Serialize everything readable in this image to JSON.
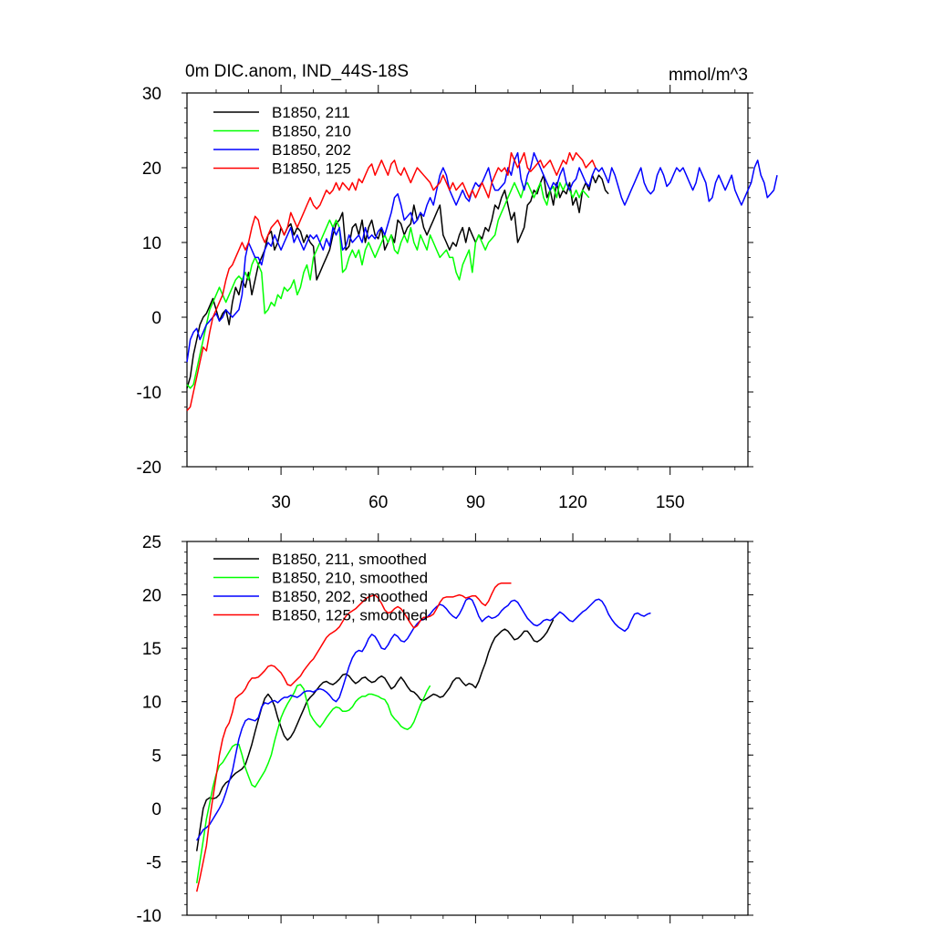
{
  "chart_data": [
    {
      "type": "line",
      "title": "0m DIC.anom, IND_44S-18S",
      "units": "mmol/m^3",
      "xlim": [
        1,
        174
      ],
      "ylim": [
        -20,
        30
      ],
      "xticks": [
        30,
        60,
        90,
        120,
        150
      ],
      "xtick_labels": [
        "30",
        "60",
        "90",
        "120",
        "150"
      ],
      "yticks": [
        -20,
        -10,
        0,
        10,
        20,
        30
      ],
      "ytick_labels": [
        "-20",
        "-10",
        "0",
        "10",
        "20",
        "30"
      ],
      "legend_position": "top-left",
      "series": [
        {
          "name": "B1850, 211",
          "color": "#000000",
          "x0": 1,
          "values": [
            -9.5,
            -8,
            -5,
            -3,
            -1,
            0,
            0.5,
            1.5,
            2.5,
            1,
            -0.5,
            0.5,
            1,
            -1,
            2,
            4,
            3,
            5,
            4,
            6,
            3,
            5,
            7,
            8,
            9,
            11,
            11.5,
            9,
            10,
            12,
            11,
            12,
            12.5,
            11,
            12,
            11.5,
            10,
            11,
            10,
            9.5,
            5,
            6,
            7,
            8,
            9,
            11,
            12.5,
            13,
            14,
            9,
            9.5,
            12,
            12.5,
            11,
            13,
            10,
            12,
            13,
            11,
            10.5,
            12,
            9,
            10,
            11,
            10,
            13,
            12.5,
            11,
            12,
            12.5,
            15,
            13,
            14,
            12,
            11,
            12,
            13,
            14,
            15,
            11,
            10,
            9,
            10,
            9.5,
            11,
            12,
            10,
            12,
            11,
            10,
            11,
            10.5,
            12,
            11.5,
            13,
            15,
            14.5,
            16,
            17,
            15,
            13,
            14,
            10,
            11,
            12,
            15,
            15.5,
            17,
            16.5,
            18,
            19,
            16,
            17,
            15,
            18,
            16,
            17,
            16.5,
            18,
            15,
            16,
            14,
            17,
            18,
            17,
            19,
            18,
            19,
            18.5,
            17,
            16.5
          ]
        },
        {
          "name": "B1850, 210",
          "color": "#00ff00",
          "x0": 1,
          "values": [
            -9,
            -9.5,
            -9,
            -7,
            -5,
            -3,
            -1,
            1,
            2,
            3,
            4,
            3,
            2,
            3,
            4,
            5,
            5.5,
            5,
            6,
            5,
            7,
            8,
            7,
            6,
            0.5,
            1,
            2,
            1.5,
            3,
            2.5,
            4,
            3.5,
            4,
            5,
            3,
            4,
            6,
            7,
            5,
            8,
            9,
            10,
            11,
            12,
            13,
            12,
            13,
            12,
            6,
            6.5,
            8,
            9,
            8,
            9,
            7,
            9,
            10,
            9,
            8,
            9,
            10,
            11,
            10,
            11,
            9,
            8.5,
            10,
            11,
            10,
            12,
            10,
            9,
            11,
            10,
            9,
            11,
            10,
            9,
            8,
            8.5,
            9,
            8,
            8,
            6,
            5,
            7,
            8,
            9,
            6,
            10,
            11,
            10,
            9,
            10,
            10.5,
            11,
            13,
            14,
            15,
            16,
            17,
            18,
            17,
            16,
            17.5,
            18,
            17,
            16,
            17,
            18,
            16,
            15,
            17,
            17.5,
            16,
            18,
            17,
            18,
            17,
            16,
            17,
            16,
            17,
            16.5,
            16
          ]
        },
        {
          "name": "B1850, 202",
          "color": "#0000ff",
          "x0": 1,
          "values": [
            -6,
            -3,
            -2,
            -1.5,
            -3,
            -2,
            -1,
            -0.5,
            0,
            0.5,
            -0.5,
            0,
            1,
            0.5,
            0,
            0.5,
            1,
            3,
            8,
            10,
            9,
            8,
            8,
            7,
            9,
            10,
            9.5,
            11,
            10,
            9,
            10,
            11,
            12,
            10,
            11,
            10,
            9,
            10,
            11,
            10.5,
            11,
            10,
            9,
            10.5,
            9.5,
            12,
            11,
            12,
            9,
            9.5,
            11,
            10,
            10.5,
            11,
            10,
            12,
            10.5,
            11,
            10.5,
            11.5,
            12,
            11,
            12.5,
            14,
            16,
            16.5,
            15,
            13,
            13.5,
            14,
            12.5,
            13,
            14,
            13.5,
            15,
            16,
            15,
            17,
            19,
            20,
            19,
            17,
            16,
            15,
            16,
            17,
            16,
            15.5,
            17,
            18,
            17.5,
            18,
            19,
            20,
            18,
            17,
            17,
            17.5,
            18,
            20,
            19,
            21,
            22,
            18.5,
            17,
            19,
            20,
            22,
            21,
            20,
            19,
            18,
            17,
            18,
            17.5,
            19,
            20,
            18,
            17,
            18,
            18.5,
            20,
            19,
            18,
            17.5,
            19,
            20,
            19.5,
            20,
            19,
            18,
            20,
            19,
            17.5,
            16,
            15,
            16,
            17,
            18,
            19,
            20,
            18,
            17,
            16.5,
            17,
            19,
            20,
            19,
            17.5,
            18,
            19,
            20,
            19.5,
            20,
            19,
            18,
            17,
            18,
            20,
            19,
            18,
            15.5,
            16,
            18,
            19,
            18,
            17,
            18,
            19,
            17,
            16,
            15,
            16,
            17,
            18,
            20,
            21,
            19,
            18,
            16,
            16.5,
            17,
            19
          ]
        },
        {
          "name": "B1850, 125",
          "color": "#ff0000",
          "x0": 1,
          "values": [
            -12.5,
            -12,
            -10,
            -8,
            -6,
            -4,
            -4.5,
            -2,
            0,
            1,
            2,
            3,
            5,
            6.5,
            7,
            8,
            9,
            10,
            9,
            10,
            12,
            13.5,
            13,
            11,
            10,
            11,
            12,
            12.5,
            13,
            12,
            11,
            12,
            14,
            13,
            12,
            13,
            14,
            15,
            16,
            15,
            14.5,
            15,
            16,
            17,
            16.5,
            17,
            18,
            17,
            18,
            17.5,
            17,
            18,
            17,
            18.5,
            18,
            19,
            20,
            20.5,
            19,
            20,
            21,
            20,
            19,
            20.5,
            21,
            19.5,
            19,
            20,
            19,
            18,
            19,
            20,
            19.5,
            19,
            18.5,
            18,
            17,
            17.5,
            18,
            19,
            18,
            17,
            18,
            17,
            17.5,
            18,
            17,
            16,
            17,
            16,
            17,
            18,
            17,
            16,
            18,
            19,
            20,
            19.5,
            20,
            19,
            22,
            21,
            20,
            21,
            22,
            20,
            19.5,
            20,
            20.5,
            21,
            20,
            20.5,
            21,
            20,
            19,
            20,
            21,
            20.5,
            22,
            21,
            22,
            21.5,
            21,
            20,
            20.5,
            21,
            20
          ]
        }
      ]
    },
    {
      "type": "line",
      "title": "",
      "units": "",
      "xlim": [
        1,
        174
      ],
      "ylim": [
        -10,
        25
      ],
      "xticks": [
        30,
        60,
        90,
        120,
        150
      ],
      "xtick_labels": [
        "",
        "",
        "",
        "",
        ""
      ],
      "yticks": [
        -10,
        -5,
        0,
        5,
        10,
        15,
        20,
        25
      ],
      "ytick_labels": [
        "-10",
        "-5",
        "0",
        "5",
        "10",
        "15",
        "20",
        "25"
      ],
      "legend_position": "top-left",
      "series": [
        {
          "name": "B1850, 211, smoothed",
          "color": "#000000",
          "x0": 4,
          "values": [
            -4,
            -2,
            0,
            0.8,
            1,
            0.9,
            1,
            1.3,
            2,
            2.4,
            2.6,
            3,
            3.3,
            3.5,
            3.7,
            4.1,
            5,
            6,
            7.2,
            8.3,
            9.4,
            10.3,
            10.7,
            10.3,
            9.6,
            8.5,
            7.6,
            6.8,
            6.4,
            6.7,
            7.2,
            7.9,
            8.6,
            9.3,
            10,
            10.4,
            10.7,
            11.1,
            11.5,
            11.8,
            11.9,
            11.7,
            11.6,
            11.8,
            12.1,
            12.5,
            12.6,
            12.4,
            12,
            11.7,
            11.9,
            12.2,
            12.3,
            12,
            11.8,
            11.9,
            12.2,
            12.4,
            12.2,
            11.7,
            11.2,
            11.4,
            11.9,
            12.3,
            11.9,
            11.4,
            11,
            10.9,
            10.6,
            10.2,
            10.1,
            10.3,
            10.5,
            10.7,
            10.6,
            10.4,
            10.5,
            10.9,
            11.3,
            11.9,
            12.2,
            12.2,
            11.8,
            11.5,
            11.7,
            11.6,
            11.3,
            11.9,
            12.8,
            13.6,
            14.6,
            15.4,
            16,
            16.3,
            16.6,
            16.8,
            16.6,
            16.2,
            15.8,
            15.9,
            16.2,
            16.6,
            16.6,
            16.2,
            15.7,
            15.6,
            15.8,
            16.1,
            16.5,
            17.1,
            17.7
          ]
        },
        {
          "name": "B1850, 210, smoothed",
          "color": "#00ff00",
          "x0": 4,
          "values": [
            -7,
            -5,
            -3,
            -1,
            0.5,
            2,
            3.2,
            4,
            4.3,
            4.8,
            5.3,
            5.8,
            6,
            6,
            5,
            3.8,
            3,
            2.2,
            2,
            2.5,
            3,
            3.5,
            4.2,
            5,
            6.3,
            7.4,
            8.5,
            9.2,
            9.8,
            10.3,
            10.8,
            11.5,
            11.6,
            11.2,
            10,
            8.8,
            8.3,
            7.9,
            7.6,
            8,
            8.5,
            8.9,
            9.3,
            9.5,
            9.4,
            9.1,
            9.1,
            9.2,
            9.5,
            10,
            10.3,
            10.5,
            10.5,
            10.7,
            10.7,
            10.6,
            10.5,
            10.3,
            10.2,
            9.7,
            8.8,
            8.4,
            8.1,
            7.7,
            7.5,
            7.4,
            7.6,
            8.1,
            8.9,
            9.7,
            10.3,
            11,
            11.5
          ]
        },
        {
          "name": "B1850, 202, smoothed",
          "color": "#0000ff",
          "x0": 4,
          "values": [
            -3,
            -2.5,
            -2,
            -1.8,
            -1.5,
            -1,
            -0.5,
            0,
            0.6,
            1.5,
            2.5,
            3.5,
            5,
            6.5,
            7.5,
            8.2,
            8.4,
            8.3,
            8.2,
            8.5,
            9.5,
            9.9,
            9.8,
            10,
            10.1,
            9.9,
            10.2,
            10.4,
            10.4,
            10.6,
            10.5,
            10.4,
            10.6,
            10.9,
            11,
            11,
            10.9,
            11.1,
            11.2,
            11.1,
            10.9,
            10.6,
            10.2,
            10,
            10.4,
            11.3,
            12.3,
            13.3,
            14.1,
            14.6,
            14.8,
            14.7,
            15.2,
            15.9,
            16.3,
            16.1,
            15.6,
            15,
            14.9,
            15.3,
            15.9,
            16.3,
            16.1,
            15.7,
            15.6,
            15.9,
            16.4,
            16.9,
            17.3,
            17.6,
            17.7,
            17.9,
            18.2,
            18.6,
            18.9,
            19.1,
            19,
            18.7,
            18.3,
            18,
            17.8,
            18.2,
            18.8,
            19.5,
            19.7,
            19.5,
            18.8,
            18,
            17.5,
            17.8,
            18,
            17.8,
            17.9,
            18.1,
            18.5,
            18.8,
            19,
            19.4,
            19.5,
            19.3,
            18.8,
            18.3,
            17.8,
            17.5,
            17.2,
            17.1,
            17.3,
            17.6,
            17.7,
            17.6,
            17.8,
            18.1,
            18.4,
            18.2,
            17.9,
            17.6,
            17.5,
            17.8,
            18.1,
            18.4,
            18.6,
            18.9,
            19.2,
            19.5,
            19.6,
            19.4,
            18.9,
            18.2,
            17.7,
            17.3,
            17,
            16.8,
            16.6,
            16.9,
            17.6,
            18.2,
            18.3,
            18.1,
            18,
            18.2,
            18.3
          ]
        },
        {
          "name": "B1850, 125, smoothed",
          "color": "#ff0000",
          "x0": 4,
          "values": [
            -7.8,
            -6.5,
            -5,
            -3.5,
            -1,
            1,
            3,
            5,
            6.5,
            7.5,
            8,
            9,
            10.3,
            10.6,
            10.8,
            11.2,
            11.8,
            12.2,
            12.2,
            12.3,
            12.6,
            12.9,
            13.3,
            13.4,
            13.3,
            13,
            12.7,
            12.2,
            11.6,
            11.5,
            11.8,
            12.1,
            12.4,
            12.9,
            13.3,
            13.7,
            14,
            14.5,
            15,
            15.5,
            16,
            16.3,
            16.5,
            16.7,
            17,
            17.5,
            18,
            18.3,
            18.5,
            18.7,
            19,
            19.3,
            19.6,
            19.8,
            19.9,
            20,
            19.7,
            19.2,
            18.6,
            18.3,
            18.4,
            18.7,
            18.9,
            18.7,
            18.3,
            17.8,
            17.3,
            16.9,
            17.1,
            17.6,
            17.9,
            17.9,
            18,
            18.2,
            18.7,
            19.3,
            19.7,
            19.8,
            19.8,
            19.8,
            19.9,
            20,
            19.9,
            19.7,
            19.8,
            19.9,
            19.9,
            19.6,
            19.2,
            19,
            19.4,
            20.1,
            20.7,
            21,
            21.1,
            21.1,
            21.1,
            21.1
          ]
        }
      ]
    }
  ]
}
